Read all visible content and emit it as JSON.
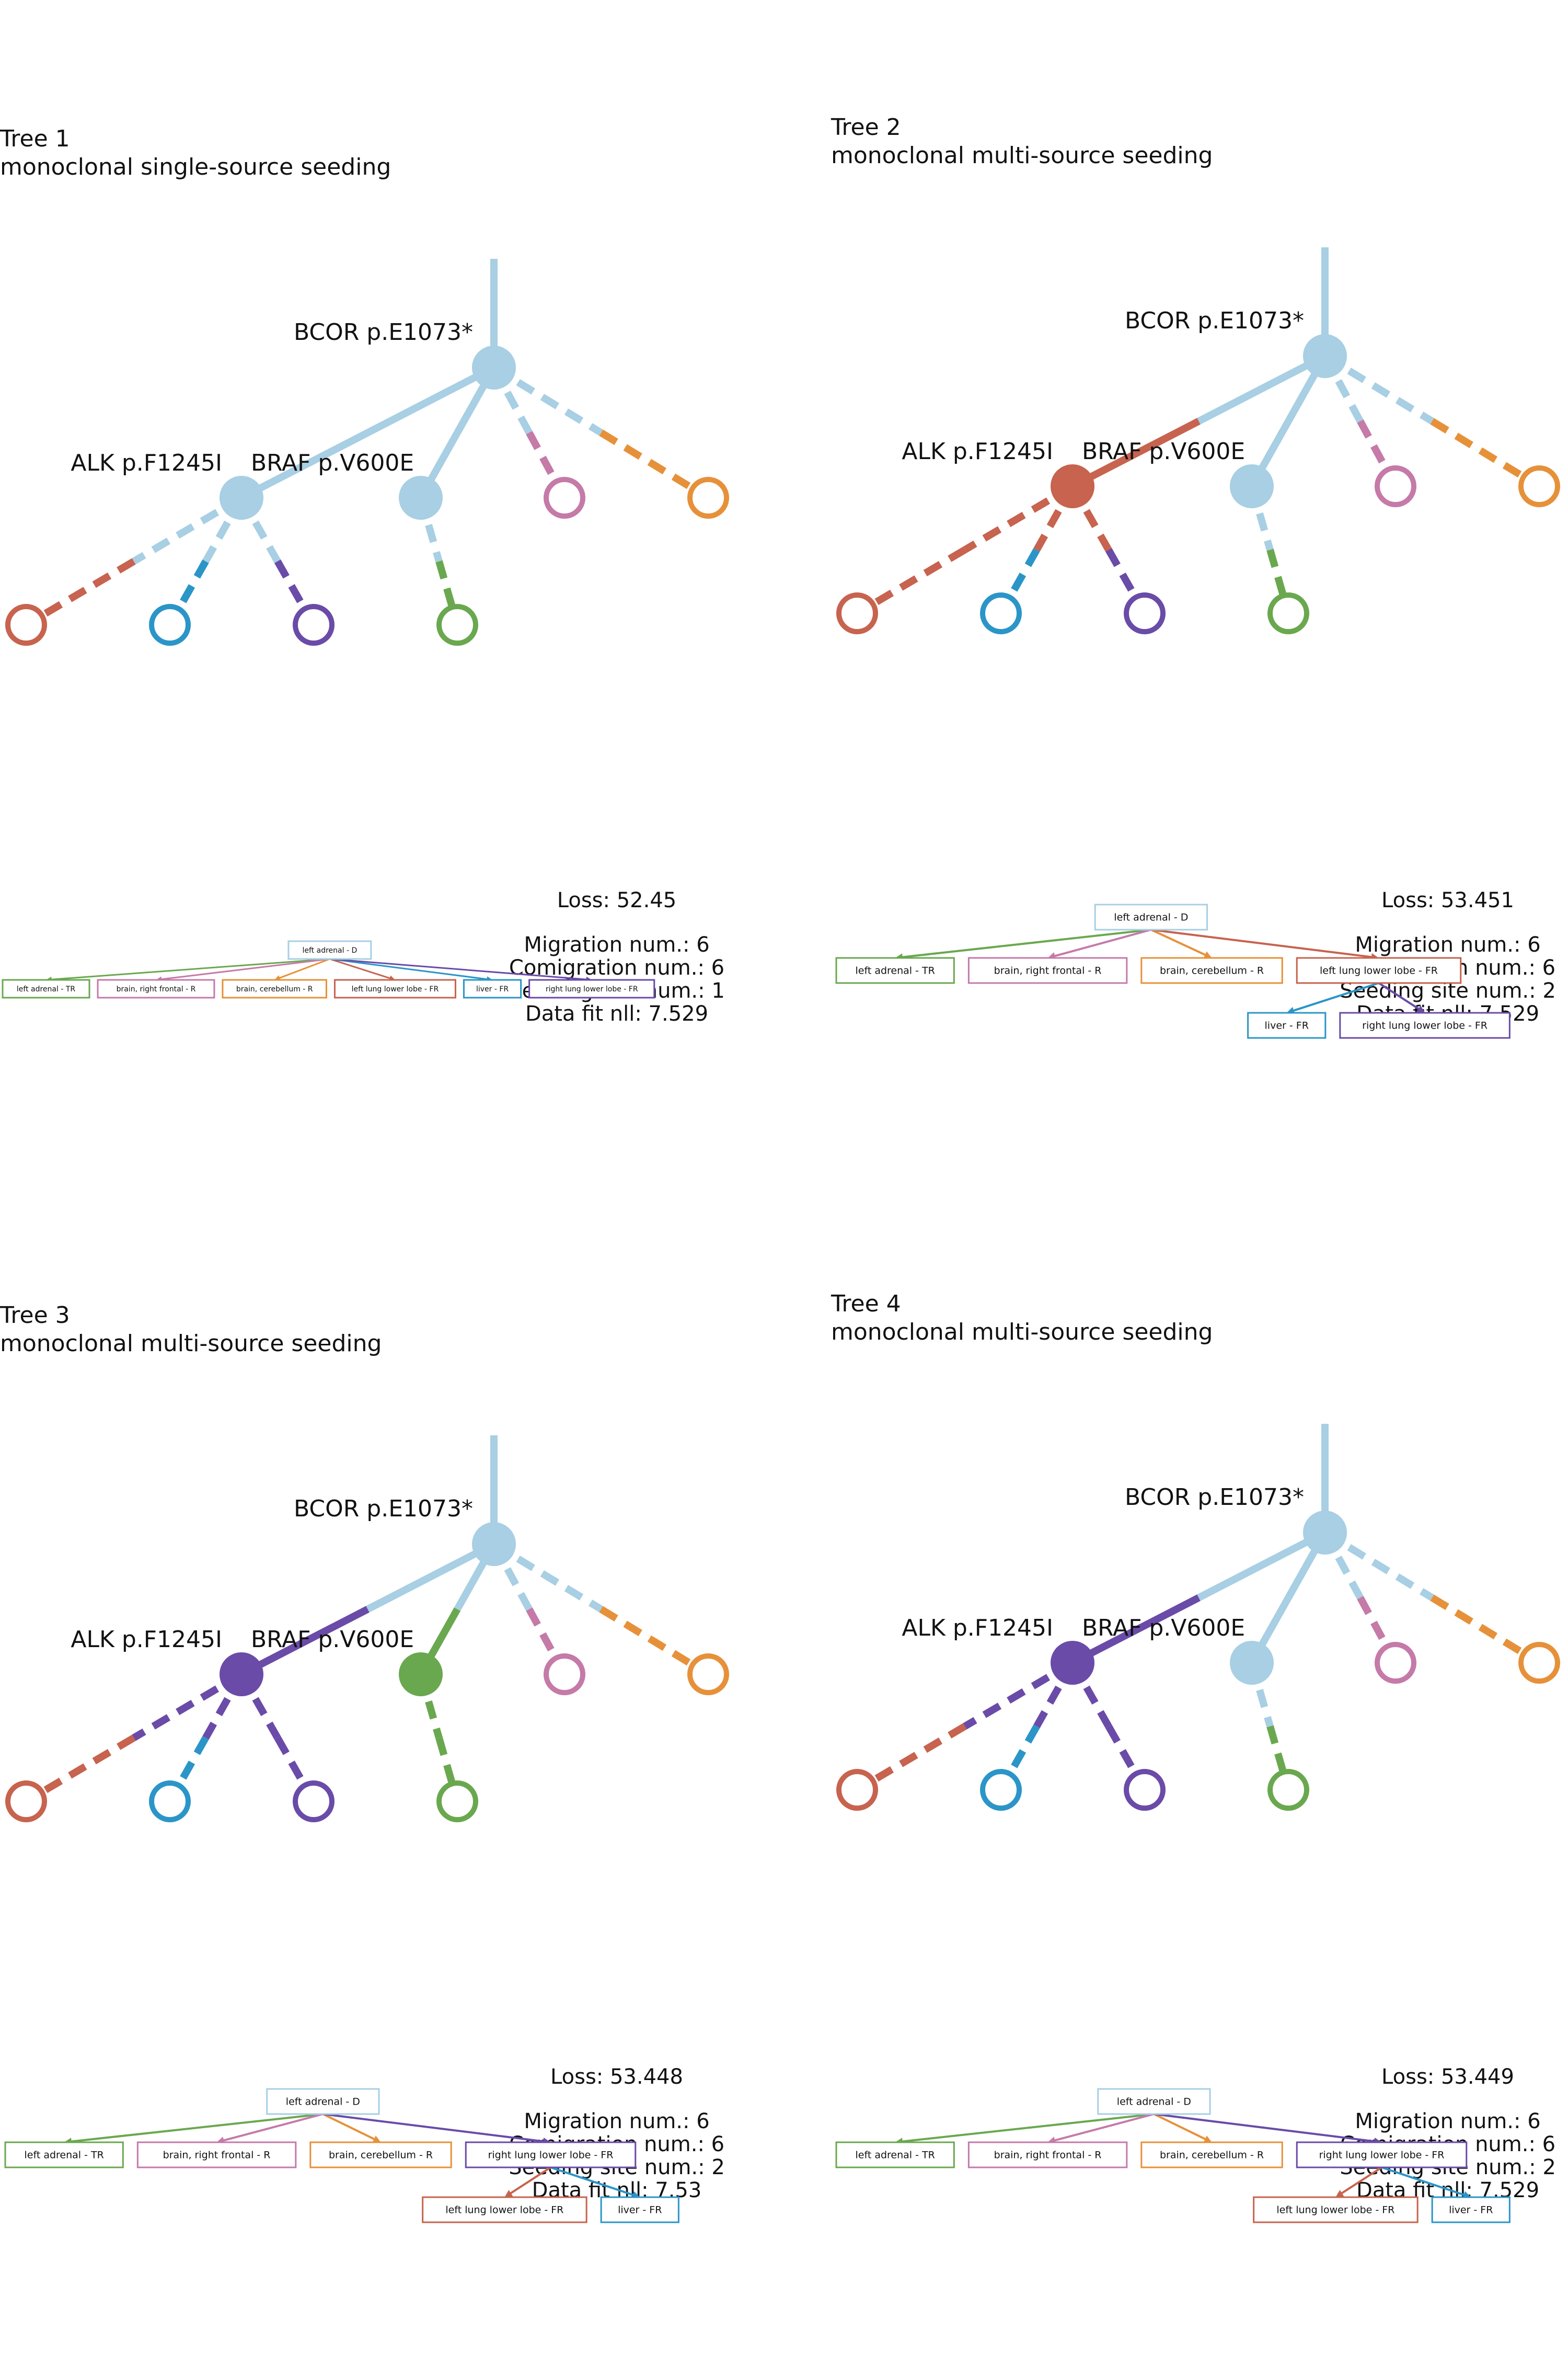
{
  "colors": {
    "primary": "#a8cfe3",
    "left_adrenal": "#6aa84f",
    "brain_right_frontal": "#c57aa8",
    "brain_cerebellum": "#e6913a",
    "left_lung_lower_lobe": "#c7634e",
    "liver": "#2b95c8",
    "right_lung_lower_lobe": "#6a4ba8"
  },
  "panels": [
    {
      "title": "Tree 1",
      "subtitle": "monoclonal single-source seeding",
      "labels": {
        "bcor": "BCOR p.E1073*",
        "alk": "ALK p.F1245I",
        "braf": "BRAF p.V600E"
      },
      "colors": {
        "trunk": "primary",
        "root": "primary",
        "e_root_alk": [
          "primary",
          "primary"
        ],
        "alk": "primary",
        "e_root_braf": "primary",
        "braf": "primary",
        "e_alk_red": [
          "primary",
          "left_lung_lower_lobe"
        ],
        "e_alk_blue": [
          "primary",
          "liver"
        ],
        "e_alk_purple": [
          "primary",
          "right_lung_lower_lobe"
        ],
        "e_braf_green": [
          "primary",
          "left_adrenal"
        ],
        "e_root_pink": [
          "primary",
          "brain_right_frontal"
        ],
        "e_root_orange": [
          "primary",
          "brain_cerebellum"
        ]
      },
      "stats": {
        "loss": "Loss: 52.45",
        "migration": "Migration num.: 6",
        "comigration": "Comigration num.: 6",
        "seeding": "Seeding site num.: 1",
        "datafit": "Data fit nll: 7.529"
      },
      "mig": {
        "root": {
          "label": "left adrenal - D",
          "color": "primary"
        },
        "level1": [
          {
            "label": "left adrenal - TR",
            "color": "left_adrenal"
          },
          {
            "label": "brain, right frontal - R",
            "color": "brain_right_frontal"
          },
          {
            "label": "brain, cerebellum - R",
            "color": "brain_cerebellum"
          },
          {
            "label": "left lung lower lobe - FR",
            "color": "left_lung_lower_lobe"
          },
          {
            "label": "liver - FR",
            "color": "liver"
          },
          {
            "label": "right lung lower lobe - FR",
            "color": "right_lung_lower_lobe"
          }
        ],
        "level2": []
      }
    },
    {
      "title": "Tree 2",
      "subtitle": "monoclonal multi-source seeding",
      "labels": {
        "bcor": "BCOR p.E1073*",
        "alk": "ALK p.F1245I",
        "braf": "BRAF p.V600E"
      },
      "colors": {
        "trunk": "primary",
        "root": "primary",
        "e_root_alk": [
          "primary",
          "left_lung_lower_lobe"
        ],
        "alk": "left_lung_lower_lobe",
        "e_root_braf": "primary",
        "braf": "primary",
        "e_alk_red": [
          "left_lung_lower_lobe",
          "left_lung_lower_lobe"
        ],
        "e_alk_blue": [
          "left_lung_lower_lobe",
          "liver"
        ],
        "e_alk_purple": [
          "left_lung_lower_lobe",
          "right_lung_lower_lobe"
        ],
        "e_braf_green": [
          "primary",
          "left_adrenal"
        ],
        "e_root_pink": [
          "primary",
          "brain_right_frontal"
        ],
        "e_root_orange": [
          "primary",
          "brain_cerebellum"
        ]
      },
      "stats": {
        "loss": "Loss: 53.451",
        "migration": "Migration num.: 6",
        "comigration": "Comigration num.: 6",
        "seeding": "Seeding site num.: 2",
        "datafit": "Data fit nll: 7.529"
      },
      "mig": {
        "root": {
          "label": "left adrenal - D",
          "color": "primary"
        },
        "level1": [
          {
            "label": "left adrenal - TR",
            "color": "left_adrenal"
          },
          {
            "label": "brain, right frontal - R",
            "color": "brain_right_frontal"
          },
          {
            "label": "brain, cerebellum - R",
            "color": "brain_cerebellum"
          },
          {
            "label": "left lung lower lobe - FR",
            "color": "left_lung_lower_lobe"
          }
        ],
        "level2": [
          {
            "label": "liver - FR",
            "color": "liver"
          },
          {
            "label": "right lung lower lobe - FR",
            "color": "right_lung_lower_lobe"
          }
        ]
      }
    },
    {
      "title": "Tree 3",
      "subtitle": "monoclonal multi-source seeding",
      "labels": {
        "bcor": "BCOR p.E1073*",
        "alk": "ALK p.F1245I",
        "braf": "BRAF p.V600E"
      },
      "colors": {
        "trunk": "primary",
        "root": "primary",
        "e_root_alk": [
          "primary",
          "right_lung_lower_lobe"
        ],
        "alk": "right_lung_lower_lobe",
        "e_root_braf": [
          "primary",
          "left_adrenal"
        ],
        "braf": "left_adrenal",
        "e_alk_red": [
          "right_lung_lower_lobe",
          "left_lung_lower_lobe"
        ],
        "e_alk_blue": [
          "right_lung_lower_lobe",
          "liver"
        ],
        "e_alk_purple": [
          "right_lung_lower_lobe",
          "right_lung_lower_lobe"
        ],
        "e_braf_green": [
          "left_adrenal",
          "left_adrenal"
        ],
        "e_root_pink": [
          "primary",
          "brain_right_frontal"
        ],
        "e_root_orange": [
          "primary",
          "brain_cerebellum"
        ]
      },
      "stats": {
        "loss": "Loss: 53.448",
        "migration": "Migration num.: 6",
        "comigration": "Comigration num.: 6",
        "seeding": "Seeding site num.: 2",
        "datafit": "Data fit nll: 7.53"
      },
      "mig": {
        "root": {
          "label": "left adrenal - D",
          "color": "primary"
        },
        "level1": [
          {
            "label": "left adrenal - TR",
            "color": "left_adrenal"
          },
          {
            "label": "brain, right frontal - R",
            "color": "brain_right_frontal"
          },
          {
            "label": "brain, cerebellum - R",
            "color": "brain_cerebellum"
          },
          {
            "label": "right lung lower lobe - FR",
            "color": "right_lung_lower_lobe"
          }
        ],
        "level2": [
          {
            "label": "left lung lower lobe - FR",
            "color": "left_lung_lower_lobe"
          },
          {
            "label": "liver - FR",
            "color": "liver"
          }
        ]
      }
    },
    {
      "title": "Tree 4",
      "subtitle": "monoclonal multi-source seeding",
      "labels": {
        "bcor": "BCOR p.E1073*",
        "alk": "ALK p.F1245I",
        "braf": "BRAF p.V600E"
      },
      "colors": {
        "trunk": "primary",
        "root": "primary",
        "e_root_alk": [
          "primary",
          "right_lung_lower_lobe"
        ],
        "alk": "right_lung_lower_lobe",
        "e_root_braf": "primary",
        "braf": "primary",
        "e_alk_red": [
          "right_lung_lower_lobe",
          "left_lung_lower_lobe"
        ],
        "e_alk_blue": [
          "right_lung_lower_lobe",
          "liver"
        ],
        "e_alk_purple": [
          "right_lung_lower_lobe",
          "right_lung_lower_lobe"
        ],
        "e_braf_green": [
          "primary",
          "left_adrenal"
        ],
        "e_root_pink": [
          "primary",
          "brain_right_frontal"
        ],
        "e_root_orange": [
          "primary",
          "brain_cerebellum"
        ]
      },
      "stats": {
        "loss": "Loss: 53.449",
        "migration": "Migration num.: 6",
        "comigration": "Comigration num.: 6",
        "seeding": "Seeding site num.: 2",
        "datafit": "Data fit nll: 7.529"
      },
      "mig": {
        "root": {
          "label": "left adrenal - D",
          "color": "primary"
        },
        "level1": [
          {
            "label": "left adrenal - TR",
            "color": "left_adrenal"
          },
          {
            "label": "brain, right frontal - R",
            "color": "brain_right_frontal"
          },
          {
            "label": "brain, cerebellum - R",
            "color": "brain_cerebellum"
          },
          {
            "label": "right lung lower lobe - FR",
            "color": "right_lung_lower_lobe"
          }
        ],
        "level2": [
          {
            "label": "left lung lower lobe - FR",
            "color": "left_lung_lower_lobe"
          },
          {
            "label": "liver - FR",
            "color": "liver"
          }
        ]
      }
    }
  ]
}
